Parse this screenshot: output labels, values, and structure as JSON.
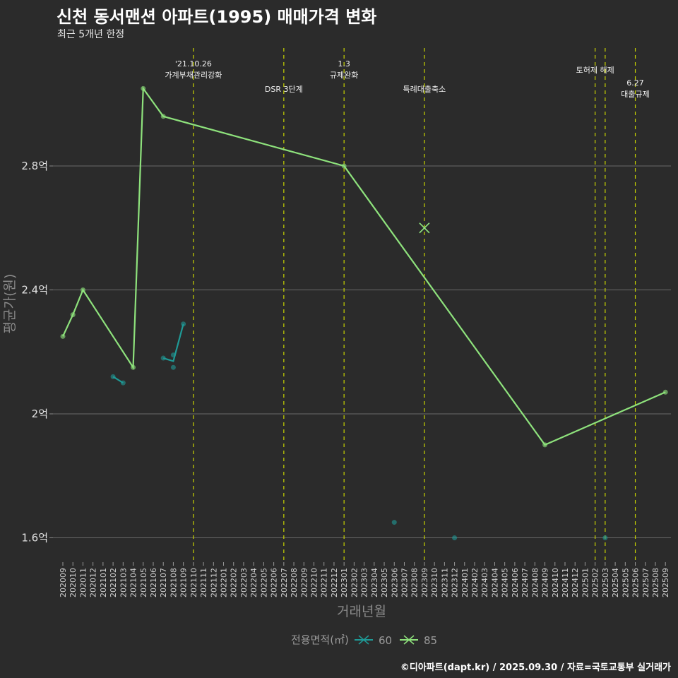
{
  "title": "신천 동서맨션 아파트(1995) 매매가격 변화",
  "subtitle": "최근 5개년 한정",
  "caption": "©디아파트(dapt.kr) / 2025.09.30 / 자료=국토교통부 실거래가",
  "chart_data": {
    "type": "line",
    "title": "신천 동서맨션 아파트(1995) 매매가격 변화",
    "xlabel": "거래년월",
    "ylabel": "평균가(원)",
    "ylim": [
      1.52,
      3.15
    ],
    "yticks": [
      1.6,
      2.0,
      2.4,
      2.8
    ],
    "ytick_labels": [
      "1.6억",
      "2억",
      "2.4억",
      "2.8억"
    ],
    "x_categories": [
      "202009",
      "202010",
      "202011",
      "202012",
      "202101",
      "202102",
      "202103",
      "202104",
      "202105",
      "202106",
      "202107",
      "202108",
      "202109",
      "202110",
      "202111",
      "202112",
      "202201",
      "202202",
      "202203",
      "202204",
      "202205",
      "202206",
      "202207",
      "202208",
      "202209",
      "202210",
      "202211",
      "202212",
      "202301",
      "202302",
      "202303",
      "202304",
      "202305",
      "202306",
      "202307",
      "202308",
      "202309",
      "202310",
      "202311",
      "202312",
      "202401",
      "202402",
      "202403",
      "202404",
      "202405",
      "202406",
      "202407",
      "202408",
      "202409",
      "202410",
      "202411",
      "202412",
      "202501",
      "202502",
      "202503",
      "202504",
      "202505",
      "202506",
      "202507",
      "202508",
      "202509"
    ],
    "legend_title": "전용면적(㎡)",
    "legend_position": "bottom",
    "series": [
      {
        "name": "60",
        "color": "#1f9a96",
        "segments": [
          [
            [
              "202102",
              2.12
            ],
            [
              "202103",
              2.1
            ]
          ],
          [
            [
              "202107",
              2.18
            ],
            [
              "202108",
              2.17
            ],
            [
              "202109",
              2.29
            ]
          ],
          [
            [
              "202306",
              1.65
            ]
          ],
          [
            [
              "202312",
              1.6
            ]
          ],
          [
            [
              "202503",
              1.6
            ]
          ]
        ],
        "points": [
          [
            "202102",
            2.12
          ],
          [
            "202103",
            2.1
          ],
          [
            "202107",
            2.18
          ],
          [
            "202108",
            2.19
          ],
          [
            "202108",
            2.15
          ],
          [
            "202109",
            2.29
          ],
          [
            "202306",
            1.65
          ],
          [
            "202312",
            1.6
          ],
          [
            "202503",
            1.6
          ]
        ]
      },
      {
        "name": "85",
        "color": "#8ee27c",
        "segments": [
          [
            [
              "202009",
              2.25
            ],
            [
              "202010",
              2.32
            ],
            [
              "202011",
              2.4
            ],
            [
              "202104",
              2.15
            ],
            [
              "202105",
              3.05
            ],
            [
              "202107",
              2.96
            ],
            [
              "202301",
              2.8
            ],
            [
              "202409",
              1.9
            ],
            [
              "202509",
              2.07
            ]
          ]
        ],
        "points": [
          [
            "202009",
            2.25
          ],
          [
            "202010",
            2.32
          ],
          [
            "202011",
            2.4
          ],
          [
            "202104",
            2.15
          ],
          [
            "202105",
            3.05
          ],
          [
            "202107",
            2.96
          ],
          [
            "202301",
            2.8
          ],
          [
            "202409",
            1.9
          ],
          [
            "202509",
            2.07
          ]
        ],
        "cross_markers": [
          [
            "202309",
            2.6
          ]
        ]
      }
    ],
    "events": [
      {
        "month": "202110",
        "lines": [
          "'21.10.26",
          "가계부채관리강화"
        ],
        "row": 0
      },
      {
        "month": "202207",
        "lines": [
          "DSR 3단계"
        ],
        "row": 2
      },
      {
        "month": "202301",
        "lines": [
          "1.3",
          "규제완화"
        ],
        "row": 0
      },
      {
        "month": "202309",
        "lines": [
          "특례대출축소"
        ],
        "row": 2
      },
      {
        "month": "202502",
        "lines": [
          "토허제 해제"
        ],
        "row": 1
      },
      {
        "month": "202503",
        "lines": [],
        "row": 1
      },
      {
        "month": "202506",
        "lines": [
          "6.27",
          "대출규제"
        ],
        "row": 3
      }
    ]
  }
}
